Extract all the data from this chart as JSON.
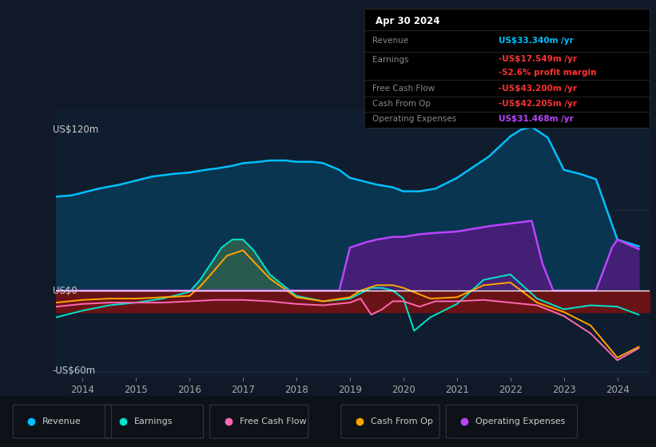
{
  "bg_color": "#111827",
  "plot_bg_color": "#0f1d2e",
  "left_bg_color": "#111827",
  "ylabel_top": "US$120m",
  "ylabel_zero": "US$0",
  "ylabel_bot": "-US$60m",
  "ylim": [
    -65,
    135
  ],
  "xlim_start": 2013.5,
  "xlim_end": 2024.6,
  "xticks": [
    2014,
    2015,
    2016,
    2017,
    2018,
    2019,
    2020,
    2021,
    2022,
    2023,
    2024
  ],
  "colors": {
    "revenue": "#00bfff",
    "earnings": "#00e5cc",
    "free_cash_flow": "#ff69b4",
    "cash_from_op": "#ffa500",
    "operating_expenses": "#bb44ff",
    "revenue_fill": "#0a3550",
    "earnings_fill_pos": "#2e5e4e",
    "operating_expenses_fill": "#4a1e7a",
    "negative_fill": "#7a1212"
  },
  "legend": [
    {
      "label": "Revenue",
      "color": "#00bfff"
    },
    {
      "label": "Earnings",
      "color": "#00e5cc"
    },
    {
      "label": "Free Cash Flow",
      "color": "#ff69b4"
    },
    {
      "label": "Cash From Op",
      "color": "#ffa500"
    },
    {
      "label": "Operating Expenses",
      "color": "#bb44ff"
    }
  ],
  "tooltip": {
    "date": "Apr 30 2024",
    "revenue_label": "Revenue",
    "revenue_val": "US$33.340m /yr",
    "revenue_color": "#00bfff",
    "earnings_label": "Earnings",
    "earnings_val": "-US$17.549m /yr",
    "earnings_color": "#ff3333",
    "margin_val": "-52.6% profit margin",
    "margin_color": "#ff3333",
    "fcf_label": "Free Cash Flow",
    "fcf_val": "-US$43.200m /yr",
    "fcf_color": "#ff3333",
    "cop_label": "Cash From Op",
    "cop_val": "-US$42.205m /yr",
    "cop_color": "#ff3333",
    "opex_label": "Operating Expenses",
    "opex_val": "US$31.468m /yr",
    "opex_color": "#bb44ff"
  },
  "revenue_x": [
    2013.5,
    2013.8,
    2014.0,
    2014.3,
    2014.7,
    2015.0,
    2015.3,
    2015.7,
    2016.0,
    2016.3,
    2016.5,
    2016.8,
    2017.0,
    2017.3,
    2017.5,
    2017.8,
    2018.0,
    2018.3,
    2018.5,
    2018.8,
    2019.0,
    2019.3,
    2019.5,
    2019.8,
    2020.0,
    2020.3,
    2020.6,
    2021.0,
    2021.3,
    2021.6,
    2022.0,
    2022.2,
    2022.4,
    2022.7,
    2023.0,
    2023.3,
    2023.6,
    2024.0,
    2024.4
  ],
  "revenue_y": [
    70,
    71,
    73,
    76,
    79,
    82,
    85,
    87,
    88,
    90,
    91,
    93,
    95,
    96,
    97,
    97,
    96,
    96,
    95,
    90,
    84,
    81,
    79,
    77,
    74,
    74,
    76,
    84,
    92,
    100,
    115,
    120,
    122,
    114,
    90,
    87,
    83,
    38,
    33
  ],
  "earnings_x": [
    2013.5,
    2014.0,
    2014.5,
    2015.0,
    2015.5,
    2016.0,
    2016.2,
    2016.4,
    2016.6,
    2016.8,
    2017.0,
    2017.2,
    2017.5,
    2018.0,
    2018.5,
    2019.0,
    2019.2,
    2019.4,
    2019.6,
    2019.8,
    2020.0,
    2020.2,
    2020.5,
    2021.0,
    2021.5,
    2022.0,
    2022.5,
    2023.0,
    2023.5,
    2024.0,
    2024.4
  ],
  "earnings_y": [
    -20,
    -15,
    -11,
    -9,
    -6,
    -1,
    8,
    20,
    32,
    38,
    38,
    30,
    12,
    -4,
    -8,
    -6,
    -2,
    2,
    2,
    0,
    -6,
    -30,
    -20,
    -10,
    8,
    12,
    -6,
    -14,
    -11,
    -12,
    -18
  ],
  "fcf_x": [
    2013.5,
    2014.0,
    2014.5,
    2015.0,
    2015.5,
    2016.0,
    2016.5,
    2017.0,
    2017.5,
    2018.0,
    2018.5,
    2019.0,
    2019.2,
    2019.4,
    2019.6,
    2019.8,
    2020.0,
    2020.3,
    2020.6,
    2021.0,
    2021.5,
    2022.0,
    2022.5,
    2023.0,
    2023.5,
    2024.0,
    2024.4
  ],
  "fcf_y": [
    -12,
    -10,
    -9,
    -9,
    -9,
    -8,
    -7,
    -7,
    -8,
    -10,
    -11,
    -9,
    -6,
    -18,
    -14,
    -8,
    -8,
    -12,
    -8,
    -8,
    -7,
    -9,
    -11,
    -19,
    -32,
    -52,
    -43
  ],
  "cop_x": [
    2013.5,
    2014.0,
    2014.5,
    2015.0,
    2015.5,
    2016.0,
    2016.2,
    2016.4,
    2016.7,
    2017.0,
    2017.5,
    2018.0,
    2018.5,
    2019.0,
    2019.2,
    2019.5,
    2019.8,
    2020.0,
    2020.5,
    2021.0,
    2021.5,
    2022.0,
    2022.5,
    2023.0,
    2023.5,
    2024.0,
    2024.4
  ],
  "cop_y": [
    -9,
    -7,
    -6,
    -6,
    -5,
    -4,
    3,
    12,
    26,
    30,
    9,
    -5,
    -8,
    -5,
    0,
    4,
    4,
    2,
    -6,
    -5,
    4,
    6,
    -9,
    -16,
    -26,
    -50,
    -42
  ],
  "opex_x": [
    2013.5,
    2018.8,
    2019.0,
    2019.3,
    2019.5,
    2019.8,
    2020.0,
    2020.3,
    2020.6,
    2021.0,
    2021.3,
    2021.6,
    2022.0,
    2022.2,
    2022.4,
    2022.6,
    2022.8,
    2023.0,
    2023.3,
    2023.6,
    2023.9,
    2024.0,
    2024.4
  ],
  "opex_y": [
    0,
    0,
    32,
    36,
    38,
    40,
    40,
    42,
    43,
    44,
    46,
    48,
    50,
    51,
    52,
    20,
    0,
    0,
    0,
    0,
    32,
    38,
    31
  ]
}
